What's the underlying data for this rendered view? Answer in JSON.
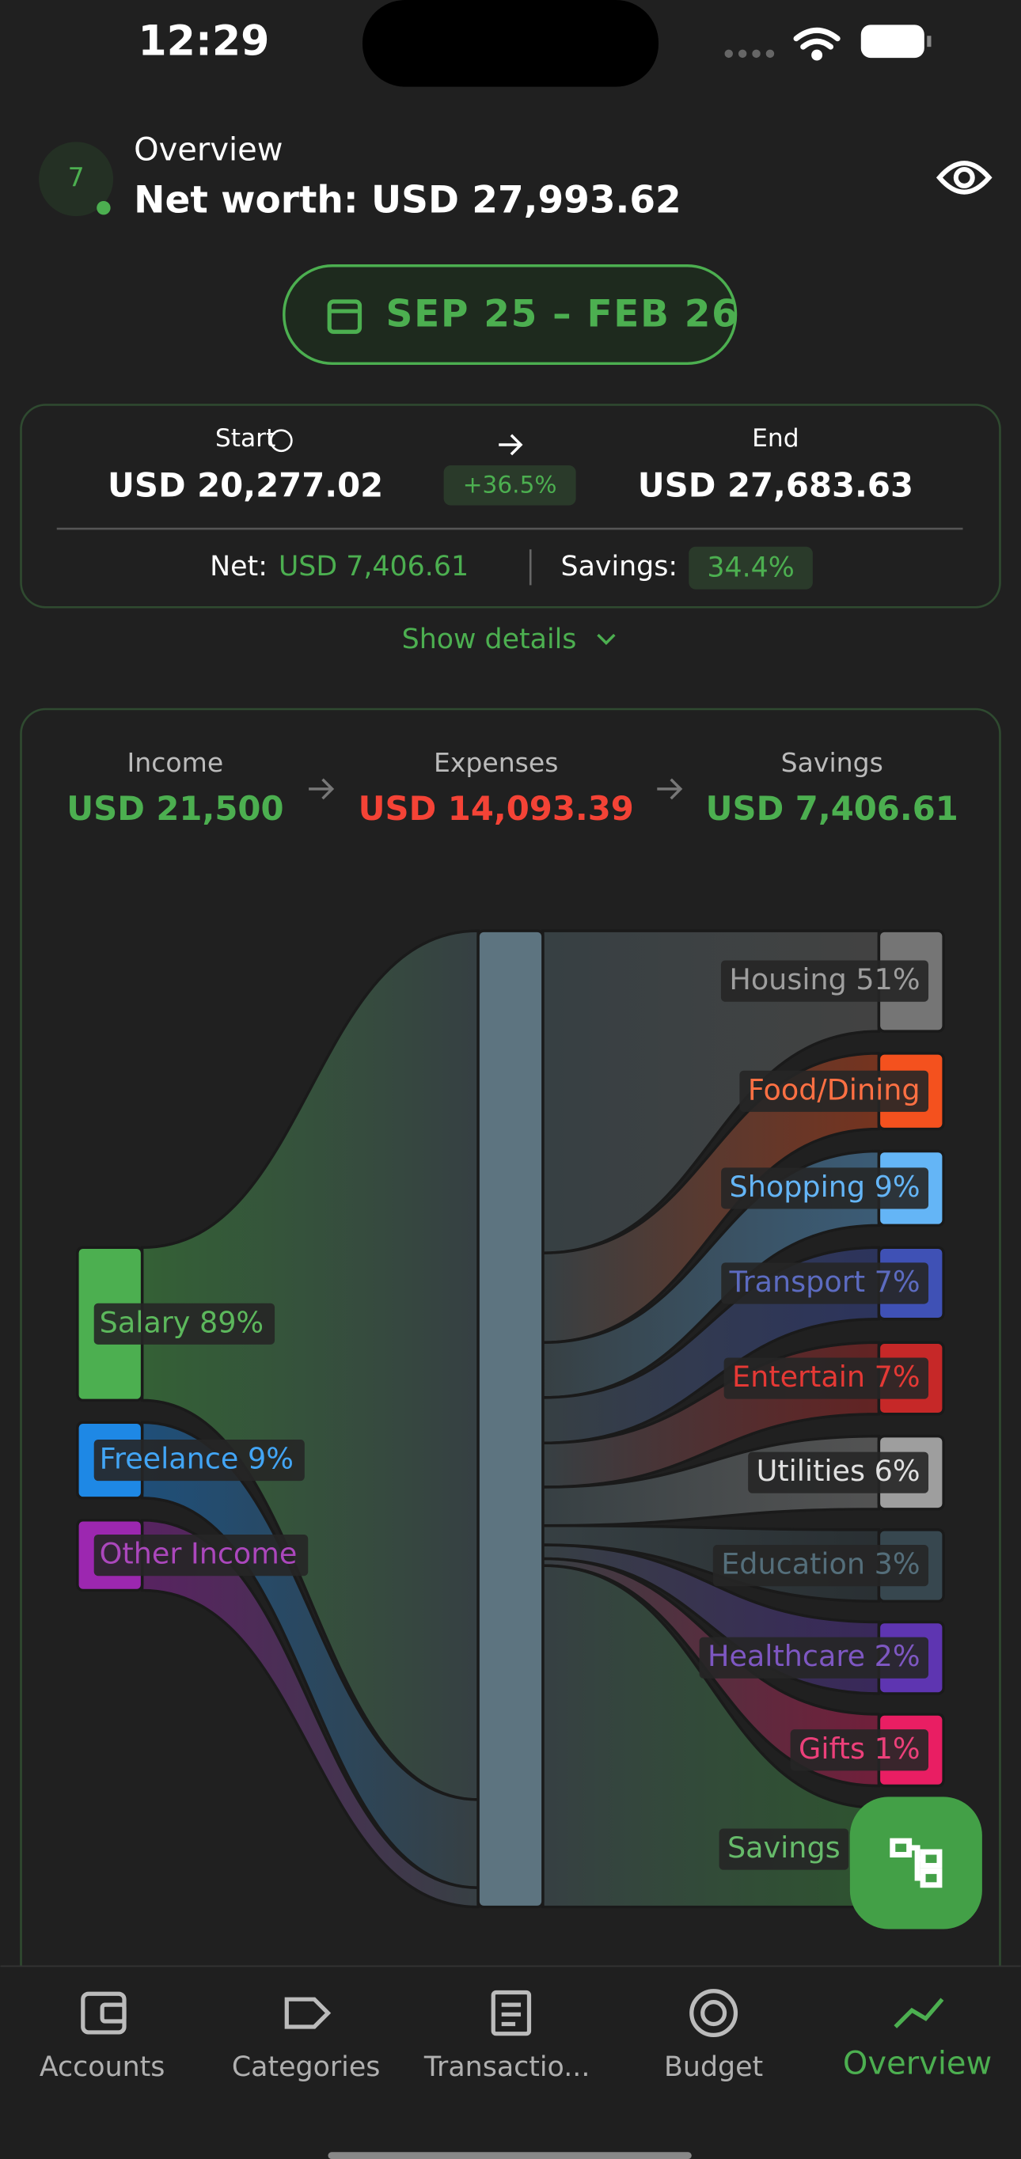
{
  "status_bar": {
    "time": "12:29"
  },
  "header": {
    "badge": "7",
    "title": "Overview",
    "net_worth": "Net worth: USD 27,993.62"
  },
  "date_range": "SEP 25 – FEB 26",
  "summary": {
    "start_label": "Start",
    "start_value": "USD 20,277.02",
    "change": "+36.5%",
    "end_label": "End",
    "end_value": "USD 27,683.63",
    "net_label": "Net:",
    "net_value": "USD 7,406.61",
    "savings_label": "Savings:",
    "savings_value": "34.4%"
  },
  "show_details": "Show details",
  "flow": {
    "income_label": "Income",
    "income_value": "USD 21,500",
    "expenses_label": "Expenses",
    "expenses_value": "USD 14,093.39",
    "savings_label": "Savings",
    "savings_value": "USD 7,406.61",
    "sources": [
      "Salary 89%",
      "Freelance 9%",
      "Other Income"
    ],
    "targets": [
      "Housing 51%",
      "Food/Dining",
      "Shopping 9%",
      "Transport 7%",
      "Entertain 7%",
      "Utilities 6%",
      "Education 3%",
      "Healthcare 2%",
      "Gifts 1%",
      "Savings"
    ]
  },
  "nav": [
    "Accounts",
    "Categories",
    "Transactio...",
    "Budget",
    "Overview"
  ]
}
